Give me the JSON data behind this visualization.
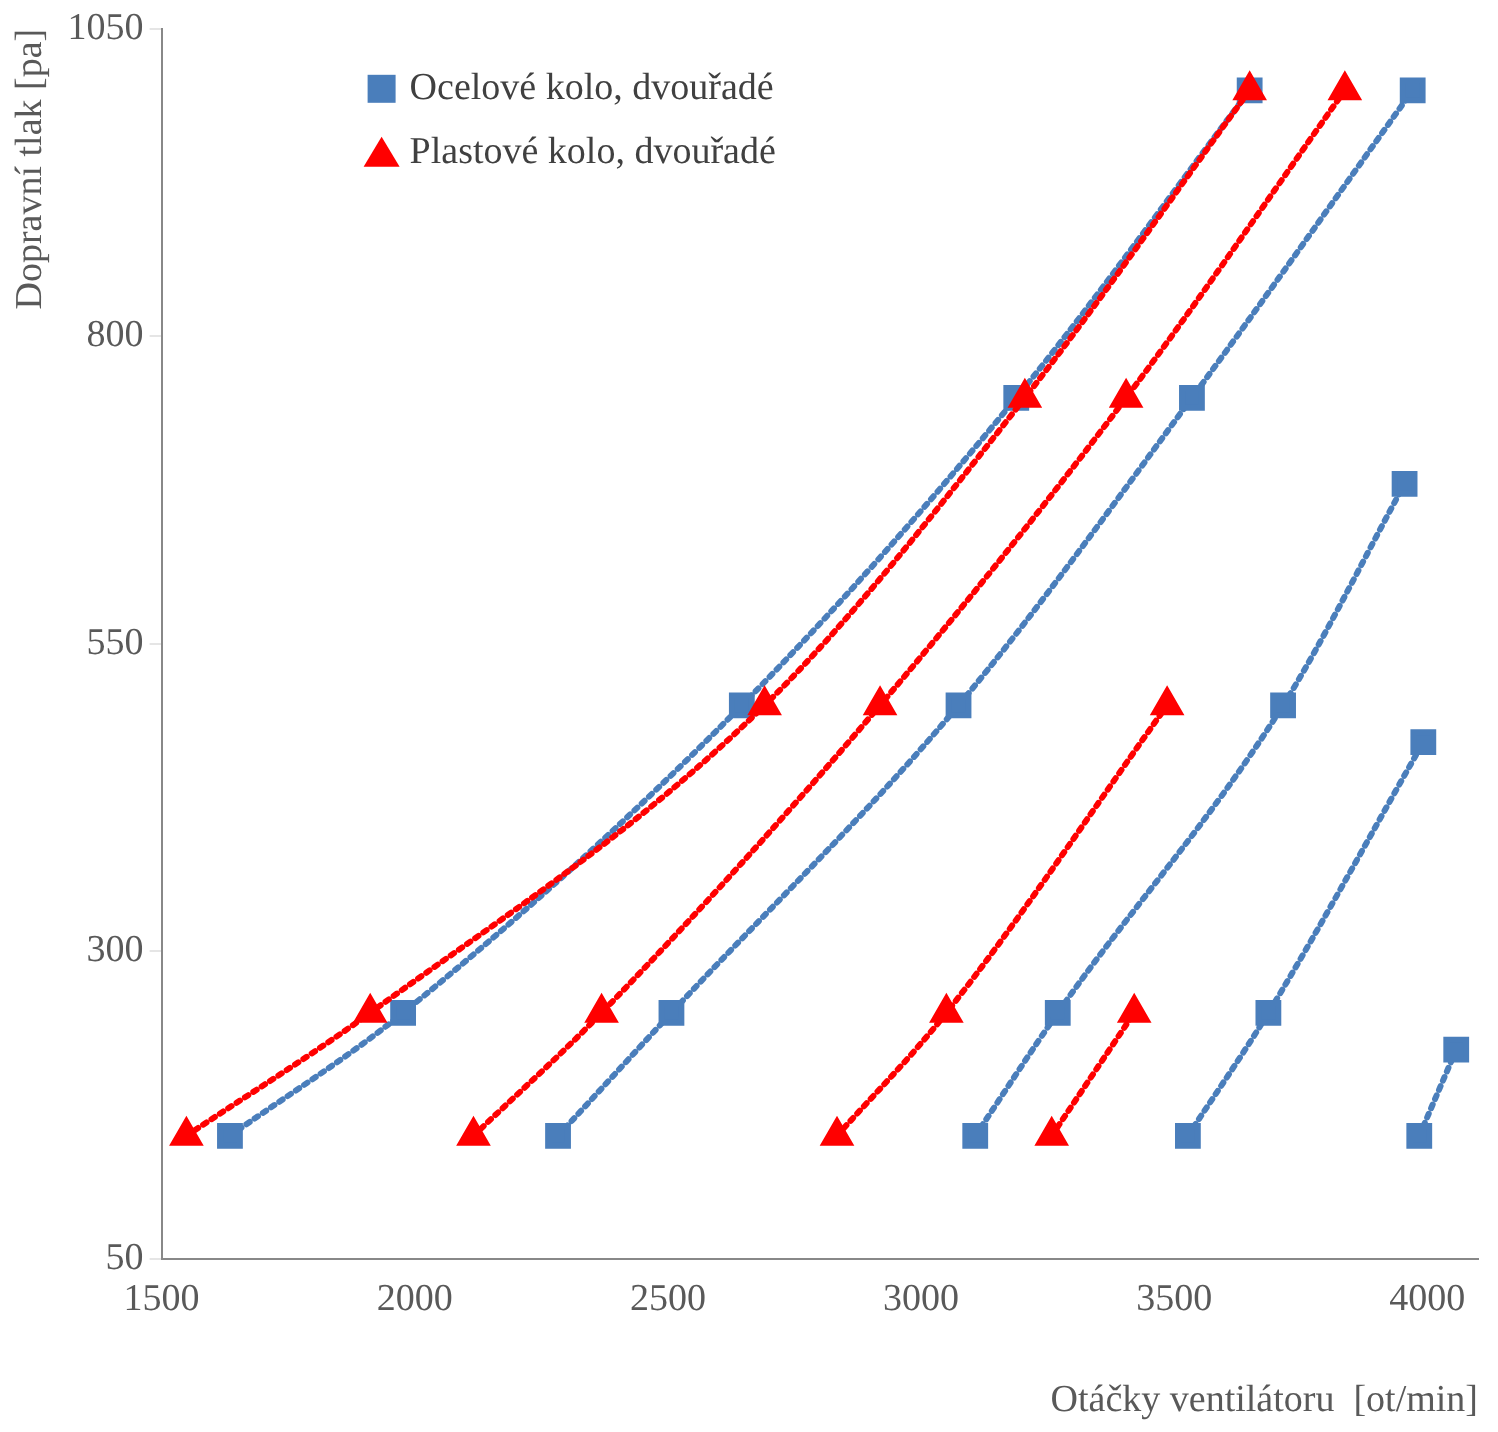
{
  "chart_data": {
    "type": "line",
    "xlabel": "Otáčky ventilátoru  [ot/min]",
    "ylabel": "Dopravní tlak [pa]",
    "xlim": [
      1500,
      4100
    ],
    "xticks": [
      1500,
      2000,
      2500,
      3000,
      3500,
      4000
    ],
    "ylim": [
      50,
      1050
    ],
    "yticks": [
      50,
      300,
      550,
      800,
      1050
    ],
    "grid": false,
    "legend": "top left",
    "line_style": "dotted",
    "series": [
      {
        "name": "Ocelové kolo, dvouřadé",
        "color": "#4a7ebb",
        "marker": "square",
        "x": [
          1635,
          1977,
          2646,
          3188,
          3649
        ],
        "values": [
          150,
          250,
          500,
          750,
          1000
        ]
      },
      {
        "name": "Plastové kolo, dvouřadé",
        "color": "#ff0000",
        "marker": "triangle",
        "x": [
          1549,
          1912,
          2691,
          3205,
          3649
        ],
        "values": [
          150,
          250,
          500,
          750,
          1000
        ]
      },
      {
        "color": "#4a7ebb",
        "marker": "square",
        "x": [
          2283,
          2507,
          3074,
          3535,
          3971
        ],
        "values": [
          150,
          250,
          500,
          750,
          1000
        ]
      },
      {
        "color": "#4a7ebb",
        "marker": "square",
        "x": [
          3107,
          3270,
          3715,
          3955
        ],
        "values": [
          150,
          250,
          500,
          680
        ]
      },
      {
        "color": "#4a7ebb",
        "marker": "square",
        "x": [
          3527,
          3686,
          3992
        ],
        "values": [
          150,
          250,
          470
        ]
      },
      {
        "color": "#4a7ebb",
        "marker": "square",
        "x": [
          3984,
          4057
        ],
        "values": [
          150,
          220
        ]
      },
      {
        "color": "#ff0000",
        "marker": "triangle",
        "x": [
          2116,
          2369,
          2919,
          3405,
          3837
        ],
        "values": [
          150,
          250,
          500,
          750,
          1000
        ]
      },
      {
        "color": "#ff0000",
        "marker": "triangle",
        "x": [
          2834,
          3050,
          3486
        ],
        "values": [
          150,
          250,
          500
        ]
      },
      {
        "color": "#ff0000",
        "marker": "triangle",
        "x": [
          3258,
          3421
        ],
        "values": [
          150,
          250
        ]
      }
    ]
  }
}
